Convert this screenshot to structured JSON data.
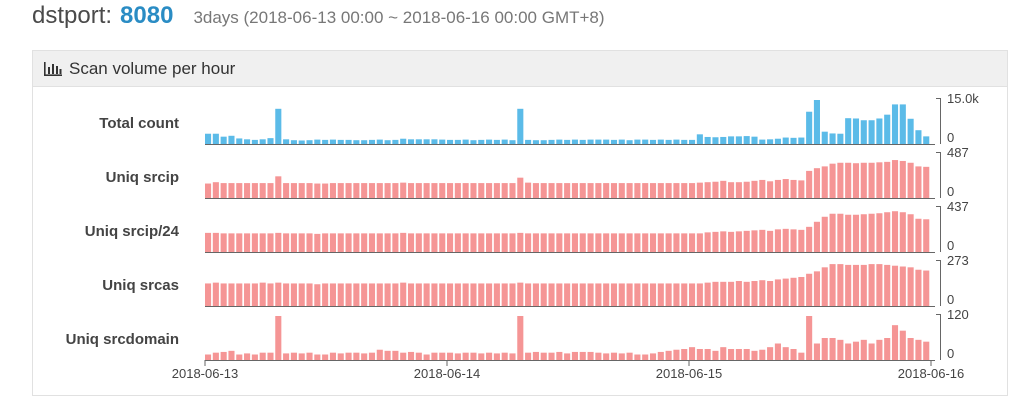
{
  "header": {
    "key": "dstport",
    "colon": ":",
    "port": "8080",
    "range": "3days (2018-06-13 00:00 ~ 2018-06-16 00:00 GMT+8)"
  },
  "panel": {
    "icon": "bar-chart-icon",
    "title": "Scan volume per hour"
  },
  "colors": {
    "blue": "#5bbbe8",
    "red": "#f59595",
    "accent": "#2a8cc4"
  },
  "chart_data": {
    "type": "bar",
    "x_ticks": [
      "2018-06-13",
      "2018-06-14",
      "2018-06-15",
      "2018-06-16"
    ],
    "rows": [
      {
        "label": "Total count",
        "ymax_label": "15.0k",
        "ymin_label": "0",
        "ymax": 15000,
        "color": "blue",
        "values": [
          3500,
          3500,
          2500,
          2800,
          1900,
          1600,
          1400,
          1600,
          2000,
          12000,
          1600,
          1300,
          1200,
          1300,
          1500,
          1400,
          1500,
          1400,
          1400,
          1300,
          1300,
          1400,
          1500,
          1300,
          1400,
          1800,
          1600,
          1600,
          1600,
          1600,
          1500,
          1400,
          1400,
          1500,
          1300,
          1400,
          1500,
          1400,
          1500,
          1300,
          12000,
          1400,
          1300,
          1300,
          1400,
          1500,
          1400,
          1500,
          1400,
          1500,
          1500,
          1500,
          1400,
          1500,
          1300,
          1500,
          1500,
          1400,
          1500,
          1400,
          1500,
          1400,
          1400,
          3300,
          2400,
          2300,
          2400,
          2600,
          2600,
          2700,
          2500,
          1500,
          1600,
          1800,
          2200,
          2100,
          2200,
          11000,
          16500,
          4200,
          3600,
          3500,
          8800,
          8700,
          8100,
          8100,
          8700,
          10000,
          13500,
          13500,
          8600,
          4700,
          2600
        ]
      },
      {
        "label": "Uniq srcip",
        "ymax_label": "487",
        "ymin_label": "0",
        "ymax": 487,
        "color": "red",
        "values": [
          160,
          175,
          165,
          165,
          165,
          165,
          165,
          165,
          165,
          240,
          165,
          165,
          165,
          165,
          160,
          160,
          165,
          165,
          165,
          165,
          165,
          165,
          165,
          165,
          165,
          170,
          165,
          165,
          165,
          165,
          165,
          165,
          165,
          165,
          165,
          165,
          165,
          165,
          165,
          165,
          225,
          170,
          165,
          165,
          165,
          165,
          165,
          165,
          165,
          165,
          165,
          165,
          165,
          165,
          165,
          165,
          165,
          165,
          165,
          165,
          165,
          165,
          165,
          170,
          175,
          180,
          190,
          175,
          175,
          180,
          190,
          200,
          185,
          200,
          210,
          200,
          195,
          300,
          330,
          350,
          380,
          390,
          390,
          385,
          390,
          390,
          395,
          400,
          420,
          410,
          390,
          350,
          345
        ]
      },
      {
        "label": "Uniq srcip/24",
        "ymax_label": "437",
        "ymin_label": "0",
        "ymax": 437,
        "color": "red",
        "values": [
          190,
          190,
          185,
          185,
          185,
          185,
          185,
          185,
          185,
          190,
          185,
          185,
          185,
          185,
          180,
          185,
          185,
          185,
          185,
          185,
          185,
          185,
          185,
          185,
          185,
          190,
          185,
          185,
          185,
          185,
          185,
          185,
          185,
          185,
          185,
          185,
          185,
          185,
          185,
          185,
          190,
          185,
          185,
          185,
          185,
          185,
          185,
          185,
          185,
          185,
          185,
          185,
          185,
          185,
          185,
          185,
          185,
          185,
          185,
          185,
          185,
          185,
          185,
          185,
          195,
          200,
          205,
          200,
          205,
          210,
          215,
          220,
          210,
          225,
          230,
          225,
          220,
          250,
          300,
          350,
          380,
          380,
          370,
          370,
          375,
          380,
          385,
          395,
          405,
          395,
          375,
          330,
          325
        ]
      },
      {
        "label": "Uniq srcas",
        "ymax_label": "273",
        "ymin_label": "0",
        "ymax": 273,
        "color": "red",
        "values": [
          140,
          145,
          140,
          140,
          140,
          140,
          140,
          145,
          140,
          145,
          140,
          140,
          140,
          140,
          135,
          140,
          140,
          140,
          140,
          140,
          140,
          140,
          140,
          140,
          140,
          145,
          140,
          140,
          140,
          140,
          140,
          140,
          140,
          140,
          140,
          140,
          140,
          140,
          140,
          140,
          145,
          140,
          140,
          140,
          140,
          140,
          140,
          140,
          140,
          140,
          140,
          140,
          140,
          140,
          140,
          140,
          140,
          140,
          140,
          140,
          140,
          140,
          140,
          140,
          145,
          150,
          150,
          150,
          155,
          150,
          155,
          160,
          155,
          165,
          170,
          175,
          180,
          200,
          215,
          240,
          260,
          260,
          255,
          255,
          255,
          260,
          260,
          255,
          250,
          245,
          240,
          225,
          220
        ]
      },
      {
        "label": "Uniq srcdomain",
        "ymax_label": "120",
        "ymin_label": "0",
        "ymax": 120,
        "color": "red",
        "values": [
          15,
          20,
          22,
          25,
          15,
          18,
          15,
          20,
          20,
          120,
          18,
          20,
          18,
          20,
          15,
          15,
          20,
          18,
          20,
          20,
          18,
          20,
          28,
          25,
          25,
          20,
          22,
          20,
          15,
          20,
          20,
          20,
          18,
          20,
          20,
          18,
          20,
          18,
          20,
          18,
          120,
          20,
          22,
          20,
          20,
          22,
          18,
          22,
          22,
          22,
          20,
          18,
          20,
          18,
          20,
          15,
          15,
          18,
          22,
          25,
          28,
          30,
          35,
          30,
          30,
          25,
          35,
          30,
          30,
          30,
          25,
          28,
          35,
          45,
          35,
          30,
          20,
          120,
          45,
          60,
          60,
          55,
          45,
          50,
          55,
          45,
          55,
          60,
          95,
          80,
          60,
          55,
          50
        ]
      }
    ]
  }
}
